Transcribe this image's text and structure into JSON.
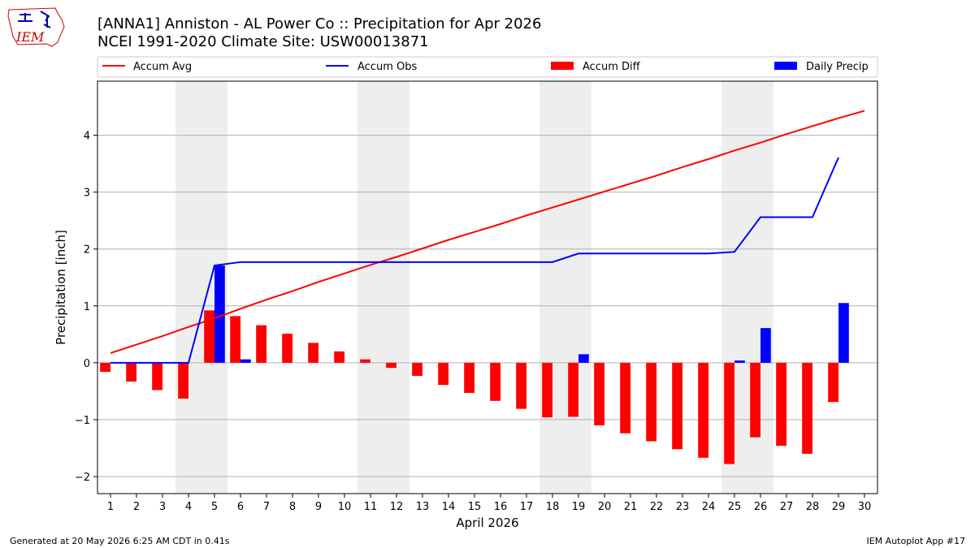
{
  "header": {
    "logo_text": "IEM",
    "title_line1": "[ANNA1] Anniston - AL Power Co :: Precipitation for Apr 2026",
    "title_line2": "NCEI 1991-2020 Climate Site: USW00013871"
  },
  "footer": {
    "left": "Generated at 20 May 2026 6:25 AM CDT in 0.41s",
    "right": "IEM Autoplot App #17"
  },
  "colors": {
    "accum_avg": "#ff0000",
    "accum_obs": "#0000ff",
    "accum_diff": "#ff0000",
    "daily_precip": "#0000ff",
    "weekend_shade": "#eeeeee",
    "grid": "#b0b0b0"
  },
  "chart_data": {
    "type": "bar",
    "xlabel": "April 2026",
    "ylabel": "Precipitation [inch]",
    "ylim": [
      -2.3,
      4.95
    ],
    "xlim": [
      0.5,
      30.5
    ],
    "yticks": [
      -2,
      -1,
      0,
      1,
      2,
      3,
      4
    ],
    "ytick_labels": [
      "−2",
      "−1",
      "0",
      "1",
      "2",
      "3",
      "4"
    ],
    "grid": true,
    "legend_position": "top",
    "days": [
      1,
      2,
      3,
      4,
      5,
      6,
      7,
      8,
      9,
      10,
      11,
      12,
      13,
      14,
      15,
      16,
      17,
      18,
      19,
      20,
      21,
      22,
      23,
      24,
      25,
      26,
      27,
      28,
      29,
      30
    ],
    "weekend_spans": [
      [
        4,
        5
      ],
      [
        11,
        12
      ],
      [
        18,
        19
      ],
      [
        25,
        26
      ]
    ],
    "legend": [
      "Accum Avg",
      "Accum Obs",
      "Accum Diff",
      "Daily Precip"
    ],
    "series": [
      {
        "name": "Accum Avg",
        "type": "line",
        "x": [
          1,
          2,
          3,
          4,
          5,
          6,
          7,
          8,
          9,
          10,
          11,
          12,
          13,
          14,
          15,
          16,
          17,
          18,
          19,
          20,
          21,
          22,
          23,
          24,
          25,
          26,
          27,
          28,
          29,
          30
        ],
        "values": [
          0.17,
          0.32,
          0.47,
          0.63,
          0.78,
          0.95,
          1.11,
          1.26,
          1.42,
          1.57,
          1.72,
          1.86,
          2.01,
          2.16,
          2.3,
          2.44,
          2.59,
          2.73,
          2.87,
          3.01,
          3.15,
          3.29,
          3.44,
          3.58,
          3.73,
          3.87,
          4.02,
          4.16,
          4.3,
          4.43
        ]
      },
      {
        "name": "Accum Obs",
        "type": "line",
        "x": [
          1,
          2,
          3,
          4,
          5,
          6,
          7,
          8,
          9,
          10,
          11,
          12,
          13,
          14,
          15,
          16,
          17,
          18,
          19,
          20,
          21,
          22,
          23,
          24,
          25,
          26,
          27,
          28,
          29
        ],
        "values": [
          0.0,
          0.0,
          0.0,
          0.0,
          1.71,
          1.77,
          1.77,
          1.77,
          1.77,
          1.77,
          1.77,
          1.77,
          1.77,
          1.77,
          1.77,
          1.77,
          1.77,
          1.77,
          1.92,
          1.92,
          1.92,
          1.92,
          1.92,
          1.92,
          1.95,
          2.56,
          2.56,
          2.56,
          3.61
        ]
      },
      {
        "name": "Accum Diff",
        "type": "bar",
        "x": [
          1,
          2,
          3,
          4,
          5,
          6,
          7,
          8,
          9,
          10,
          11,
          12,
          13,
          14,
          15,
          16,
          17,
          18,
          19,
          20,
          21,
          22,
          23,
          24,
          25,
          26,
          27,
          28,
          29
        ],
        "values": [
          -0.16,
          -0.33,
          -0.48,
          -0.63,
          0.92,
          0.82,
          0.66,
          0.51,
          0.35,
          0.2,
          0.06,
          -0.09,
          -0.23,
          -0.39,
          -0.53,
          -0.67,
          -0.81,
          -0.96,
          -0.95,
          -1.1,
          -1.24,
          -1.38,
          -1.52,
          -1.67,
          -1.78,
          -1.31,
          -1.46,
          -1.6,
          -0.69
        ]
      },
      {
        "name": "Daily Precip",
        "type": "bar",
        "x": [
          5,
          6,
          19,
          25,
          26,
          29
        ],
        "values": [
          1.71,
          0.06,
          0.15,
          0.04,
          0.61,
          1.05
        ]
      }
    ]
  }
}
